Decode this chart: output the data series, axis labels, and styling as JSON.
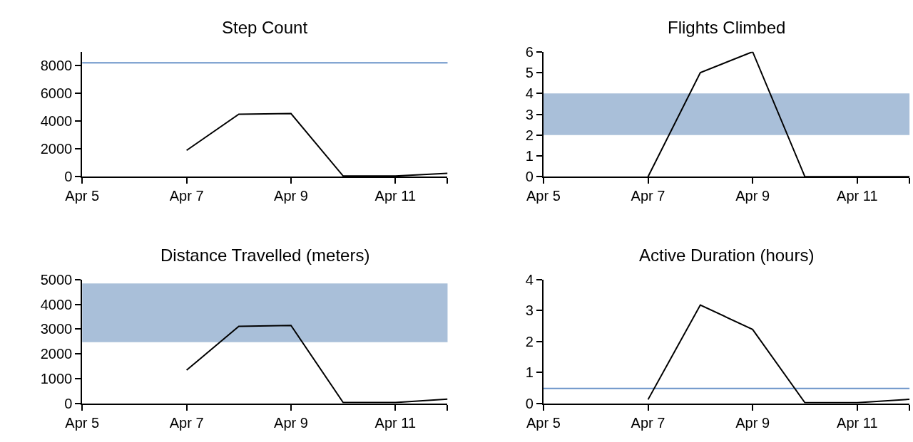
{
  "chart_data": [
    {
      "type": "line",
      "title": "Step Count",
      "x": [
        "--04-07",
        "--04-08",
        "--04-09",
        "--04-10",
        "--04-11",
        "--04-12"
      ],
      "series": [
        {
          "color": "#000000",
          "values": [
            1900,
            4500,
            4550,
            50,
            50,
            250
          ]
        }
      ],
      "xlim": [
        "--04-05",
        "--04-12"
      ],
      "xticks": [
        {
          "value": "--04-05",
          "label": "Apr 5"
        },
        {
          "value": "--04-07",
          "label": "Apr 7"
        },
        {
          "value": "--04-09",
          "label": "Apr 9"
        },
        {
          "value": "--04-11",
          "label": "Apr 11"
        },
        {
          "value": "--04-12",
          "label": null
        }
      ],
      "ylim": [
        0,
        9000
      ],
      "yticks": [
        0,
        2000,
        4000,
        6000,
        8000
      ],
      "ref_lines": [
        {
          "axis": "y",
          "value": 8200,
          "color": "#6b93c9"
        }
      ],
      "grid": false,
      "marker": "none"
    },
    {
      "type": "line",
      "title": "Flights Climbed",
      "x": [
        "--04-07",
        "--04-08",
        "--04-09",
        "--04-10",
        "--04-11",
        "--04-12"
      ],
      "series": [
        {
          "color": "#000000",
          "values": [
            0,
            5,
            6,
            0,
            0,
            0
          ]
        }
      ],
      "xlim": [
        "--04-05",
        "--04-12"
      ],
      "xticks": [
        {
          "value": "--04-05",
          "label": "Apr 5"
        },
        {
          "value": "--04-07",
          "label": "Apr 7"
        },
        {
          "value": "--04-09",
          "label": "Apr 9"
        },
        {
          "value": "--04-11",
          "label": "Apr 11"
        },
        {
          "value": "--04-12",
          "label": null
        }
      ],
      "ylim": [
        0,
        6
      ],
      "yticks": [
        0,
        1,
        2,
        3,
        4,
        5,
        6
      ],
      "bands": [
        {
          "axis": "y",
          "from": 2,
          "to": 4,
          "color": "#a9bfd9"
        }
      ],
      "grid": false,
      "marker": "none"
    },
    {
      "type": "line",
      "title": "Distance Travelled (meters)",
      "x": [
        "--04-07",
        "--04-08",
        "--04-09",
        "--04-10",
        "--04-11",
        "--04-12"
      ],
      "series": [
        {
          "color": "#000000",
          "values": [
            1340,
            3110,
            3150,
            30,
            30,
            170
          ]
        }
      ],
      "xlim": [
        "--04-05",
        "--04-12"
      ],
      "xticks": [
        {
          "value": "--04-05",
          "label": "Apr 5"
        },
        {
          "value": "--04-07",
          "label": "Apr 7"
        },
        {
          "value": "--04-09",
          "label": "Apr 9"
        },
        {
          "value": "--04-11",
          "label": "Apr 11"
        },
        {
          "value": "--04-12",
          "label": null
        }
      ],
      "ylim": [
        0,
        5000
      ],
      "yticks": [
        0,
        1000,
        2000,
        3000,
        4000,
        5000
      ],
      "bands": [
        {
          "axis": "y",
          "from": 2470,
          "to": 4850,
          "color": "#a9bfd9"
        }
      ],
      "grid": false,
      "marker": "none"
    },
    {
      "type": "line",
      "title": "Active Duration (hours)",
      "x": [
        "--04-07",
        "--04-08",
        "--04-09",
        "--04-10",
        "--04-11",
        "--04-12"
      ],
      "series": [
        {
          "color": "#000000",
          "values": [
            0.12,
            3.18,
            2.39,
            0.02,
            0.02,
            0.13
          ]
        }
      ],
      "xlim": [
        "--04-05",
        "--04-12"
      ],
      "xticks": [
        {
          "value": "--04-05",
          "label": "Apr 5"
        },
        {
          "value": "--04-07",
          "label": "Apr 7"
        },
        {
          "value": "--04-09",
          "label": "Apr 9"
        },
        {
          "value": "--04-11",
          "label": "Apr 11"
        },
        {
          "value": "--04-12",
          "label": null
        }
      ],
      "ylim": [
        0,
        4
      ],
      "yticks": [
        0,
        1,
        2,
        3,
        4
      ],
      "ref_lines": [
        {
          "axis": "y",
          "value": 0.48,
          "color": "#6b93c9"
        }
      ],
      "grid": false,
      "marker": "none"
    }
  ]
}
